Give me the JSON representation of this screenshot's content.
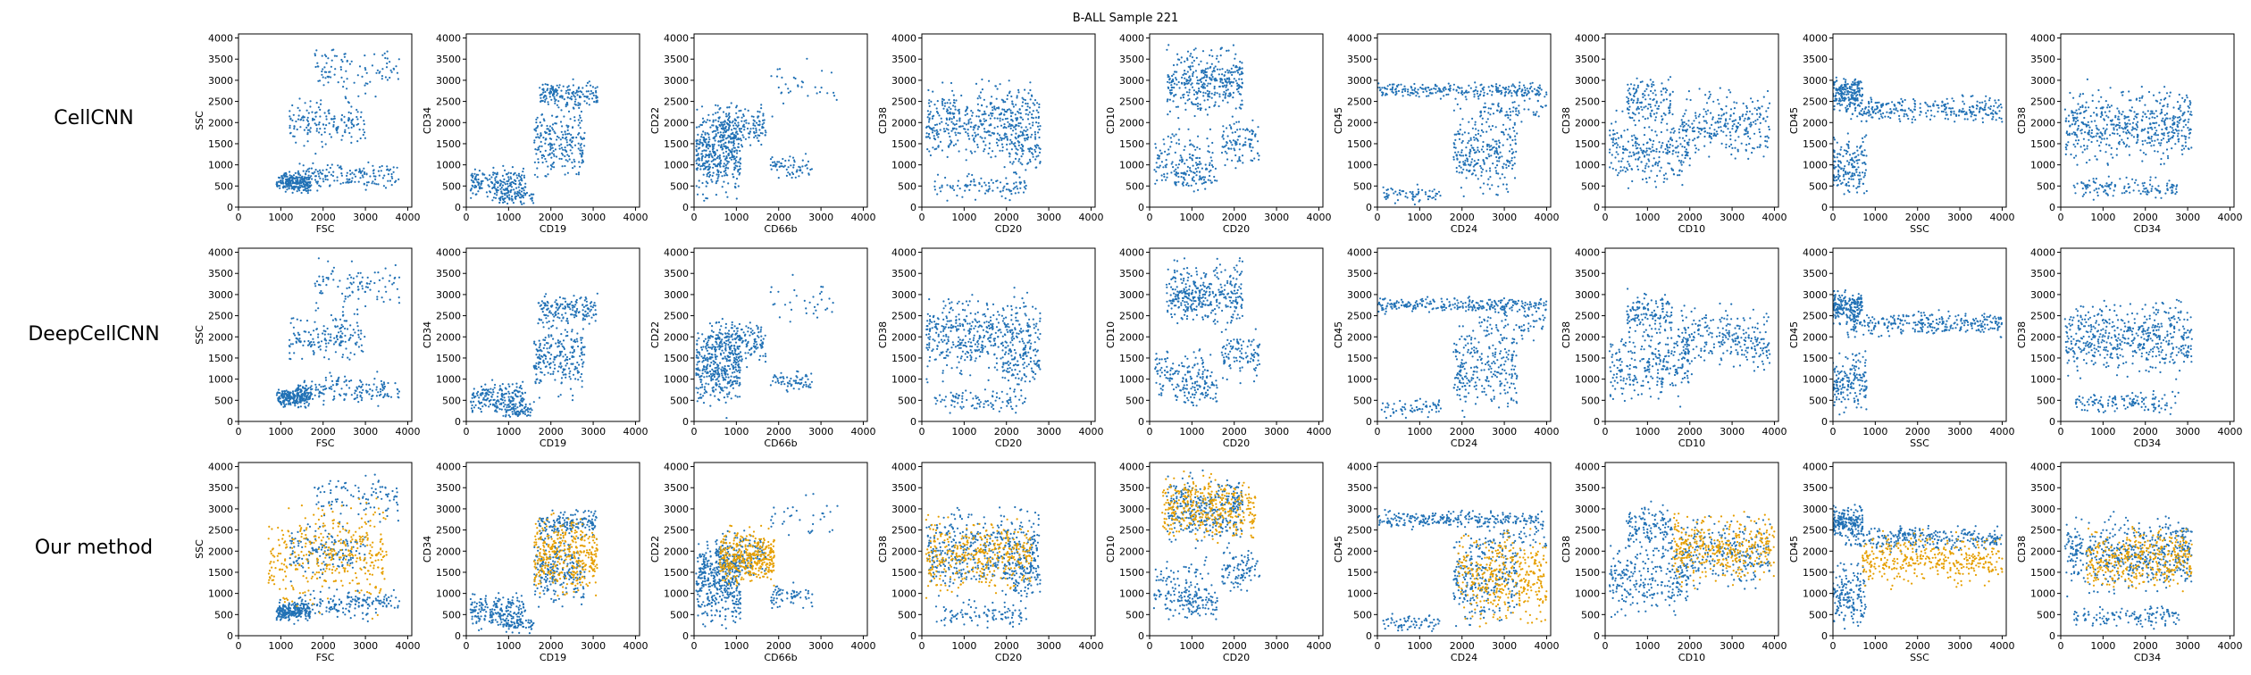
{
  "figure": {
    "title": "B-ALL Sample 221",
    "row_labels": [
      "CellCNN",
      "DeepCellCNN",
      "Our method"
    ]
  },
  "colors": {
    "blue": "#2171b5",
    "orange": "#e69f00"
  },
  "chart_data": {
    "type": "scatter",
    "title": "B-ALL Sample 221",
    "grid": false,
    "xlim": [
      0,
      4096
    ],
    "ylim": [
      0,
      4096
    ],
    "ticks": [
      0,
      500,
      1000,
      1500,
      2000,
      2500,
      3000,
      3500,
      4000
    ],
    "x_ticks": [
      0,
      1000,
      2000,
      3000,
      4000
    ],
    "y_ticks": [
      0,
      500,
      1000,
      1500,
      2000,
      2500,
      3000,
      3500,
      4000
    ],
    "rows": [
      "CellCNN",
      "DeepCellCNN",
      "Our method"
    ],
    "panels": [
      {
        "xlabel": "FSC",
        "ylabel": "SSC"
      },
      {
        "xlabel": "CD19",
        "ylabel": "CD34"
      },
      {
        "xlabel": "CD66b",
        "ylabel": "CD22"
      },
      {
        "xlabel": "CD20",
        "ylabel": "CD38"
      },
      {
        "xlabel": "CD20",
        "ylabel": "CD10"
      },
      {
        "xlabel": "CD24",
        "ylabel": "CD45"
      },
      {
        "xlabel": "CD10",
        "ylabel": "CD38"
      },
      {
        "xlabel": "SSC",
        "ylabel": "CD45"
      },
      {
        "xlabel": "CD34",
        "ylabel": "CD38"
      }
    ],
    "clusters": [
      [
        {
          "x": [
            900,
            1700
          ],
          "y": [
            250,
            900
          ],
          "n": 0.35
        },
        {
          "x": [
            1400,
            3800
          ],
          "y": [
            300,
            1200
          ],
          "n": 0.25
        },
        {
          "x": [
            1200,
            3000
          ],
          "y": [
            1200,
            2800
          ],
          "n": 0.25
        },
        {
          "x": [
            1800,
            3800
          ],
          "y": [
            2500,
            4000
          ],
          "n": 0.15
        }
      ],
      [
        {
          "x": [
            100,
            1400
          ],
          "y": [
            50,
            1100
          ],
          "n": 0.3
        },
        {
          "x": [
            1600,
            2800
          ],
          "y": [
            400,
            2600
          ],
          "n": 0.35
        },
        {
          "x": [
            1700,
            3100
          ],
          "y": [
            2200,
            3100
          ],
          "n": 0.25
        },
        {
          "x": [
            800,
            1600
          ],
          "y": [
            0,
            500
          ],
          "n": 0.1
        }
      ],
      [
        {
          "x": [
            50,
            1100
          ],
          "y": [
            0,
            2600
          ],
          "n": 0.6
        },
        {
          "x": [
            500,
            1700
          ],
          "y": [
            1200,
            2600
          ],
          "n": 0.25
        },
        {
          "x": [
            1800,
            2800
          ],
          "y": [
            600,
            1300
          ],
          "n": 0.1
        },
        {
          "x": [
            1800,
            3400
          ],
          "y": [
            2000,
            3600
          ],
          "n": 0.05
        }
      ],
      [
        {
          "x": [
            100,
            2800
          ],
          "y": [
            800,
            3200
          ],
          "n": 0.75
        },
        {
          "x": [
            300,
            2500
          ],
          "y": [
            100,
            900
          ],
          "n": 0.15
        },
        {
          "x": [
            1900,
            2800
          ],
          "y": [
            600,
            2000
          ],
          "n": 0.1
        }
      ],
      [
        {
          "x": [
            400,
            2200
          ],
          "y": [
            2000,
            4000
          ],
          "n": 0.55
        },
        {
          "x": [
            100,
            1500
          ],
          "y": [
            200,
            2000
          ],
          "n": 0.2
        },
        {
          "x": [
            1700,
            2600
          ],
          "y": [
            800,
            2300
          ],
          "n": 0.15
        },
        {
          "x": [
            600,
            1600
          ],
          "y": [
            300,
            1200
          ],
          "n": 0.1
        }
      ],
      [
        {
          "x": [
            0,
            4000
          ],
          "y": [
            2500,
            3000
          ],
          "n": 0.4
        },
        {
          "x": [
            1800,
            3300
          ],
          "y": [
            0,
            2600
          ],
          "n": 0.4
        },
        {
          "x": [
            2400,
            4000
          ],
          "y": [
            1800,
            2800
          ],
          "n": 0.1
        },
        {
          "x": [
            100,
            1500
          ],
          "y": [
            0,
            600
          ],
          "n": 0.1
        }
      ],
      [
        {
          "x": [
            100,
            2000
          ],
          "y": [
            200,
            2500
          ],
          "n": 0.4
        },
        {
          "x": [
            1800,
            3900
          ],
          "y": [
            900,
            3000
          ],
          "n": 0.4
        },
        {
          "x": [
            500,
            1600
          ],
          "y": [
            1800,
            3300
          ],
          "n": 0.2
        }
      ],
      [
        {
          "x": [
            0,
            700
          ],
          "y": [
            2200,
            3200
          ],
          "n": 0.3
        },
        {
          "x": [
            300,
            4000
          ],
          "y": [
            1900,
            2700
          ],
          "n": 0.45
        },
        {
          "x": [
            0,
            800
          ],
          "y": [
            0,
            1900
          ],
          "n": 0.25
        }
      ],
      [
        {
          "x": [
            100,
            3100
          ],
          "y": [
            800,
            3100
          ],
          "n": 0.8
        },
        {
          "x": [
            300,
            2800
          ],
          "y": [
            100,
            800
          ],
          "n": 0.2
        }
      ]
    ],
    "orange_clusters": [
      {
        "x": [
          700,
          3500
        ],
        "y": [
          300,
          3500
        ]
      },
      {
        "x": [
          1600,
          3100
        ],
        "y": [
          600,
          3100
        ]
      },
      {
        "x": [
          600,
          1900
        ],
        "y": [
          1000,
          2700
        ]
      },
      {
        "x": [
          100,
          2600
        ],
        "y": [
          800,
          3000
        ]
      },
      {
        "x": [
          300,
          2500
        ],
        "y": [
          2000,
          4000
        ]
      },
      {
        "x": [
          1900,
          4000
        ],
        "y": [
          0,
          2800
        ]
      },
      {
        "x": [
          1600,
          4000
        ],
        "y": [
          1000,
          3100
        ]
      },
      {
        "x": [
          700,
          4000
        ],
        "y": [
          1000,
          2600
        ]
      },
      {
        "x": [
          600,
          3100
        ],
        "y": [
          800,
          2800
        ]
      }
    ],
    "legend": null
  }
}
